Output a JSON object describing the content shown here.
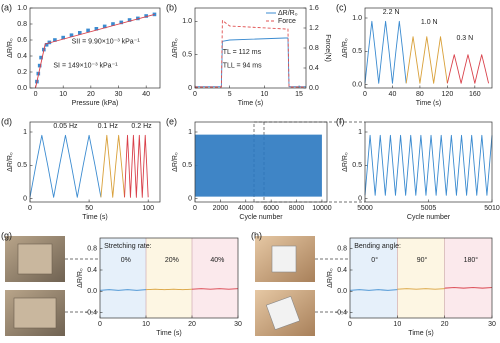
{
  "chart_data": [
    {
      "type": "line",
      "label": "(a)",
      "xlabel": "Pressure (kPa)",
      "ylabel": "ΔR/R₀",
      "xlim": [
        -2,
        45
      ],
      "xticks": [
        0,
        10,
        20,
        30,
        40
      ],
      "ylim": [
        0,
        1.0
      ],
      "yticks": [
        {
          "value": 0,
          "label": "0.0"
        },
        0.2,
        0.4,
        0.6,
        0.8,
        {
          "value": 1,
          "label": "1.0"
        }
      ],
      "annotations": [
        "SII = 9.90×10⁻³ kPa⁻¹",
        "SI = 149×10⁻³ kPa⁻¹"
      ],
      "series": [
        {
          "mode": "scatter",
          "color": "#3b8bd0",
          "x": [
            0.5,
            1,
            1.5,
            2,
            3,
            4,
            5,
            7,
            10,
            13,
            16,
            19,
            22,
            25,
            28,
            31,
            34,
            37,
            40,
            43
          ],
          "values": [
            0.08,
            0.18,
            0.28,
            0.38,
            0.48,
            0.54,
            0.57,
            0.6,
            0.63,
            0.66,
            0.69,
            0.72,
            0.74,
            0.77,
            0.8,
            0.82,
            0.85,
            0.87,
            0.9,
            0.92
          ]
        },
        {
          "mode": "line",
          "color": "#d9404a",
          "x": [
            0,
            3.5,
            43
          ],
          "values": [
            0,
            0.55,
            0.92
          ]
        }
      ]
    },
    {
      "type": "line",
      "label": "(b)",
      "xlabel": "Time (s)",
      "ylabel": "ΔR/R₀",
      "y2label": "Force(N)",
      "xlim": [
        0,
        16
      ],
      "xticks": [
        0,
        5,
        10,
        15
      ],
      "ylim": [
        0,
        1.2
      ],
      "yticks": [
        0,
        0.5,
        {
          "value": 1,
          "label": "1.0"
        }
      ],
      "y2lim": [
        0,
        1.6
      ],
      "y2ticks": [
        {
          "value": 0,
          "label": "0.0"
        },
        0.4,
        0.8,
        1.2,
        1.6
      ],
      "legend": "upper right",
      "annotations": [
        "TL = 112 ms",
        "TLL = 94 ms"
      ],
      "series": [
        {
          "name": "ΔR/R₀",
          "mode": "line",
          "color": "#3b8bd0",
          "x": [
            0,
            3.8,
            3.95,
            5,
            13,
            13.4,
            13.55,
            16
          ],
          "values": [
            0.02,
            0.02,
            0.7,
            0.72,
            0.75,
            0.75,
            0.02,
            0.02
          ]
        },
        {
          "name": "Force",
          "mode": "line",
          "dash": true,
          "axis": "y2",
          "color": "#e05050",
          "x": [
            0,
            3.8,
            3.95,
            5,
            13,
            13.4,
            13.55,
            16
          ],
          "values": [
            0.02,
            0.02,
            1.35,
            1.24,
            1.18,
            1.18,
            0.02,
            0.02
          ]
        }
      ]
    },
    {
      "type": "line",
      "label": "(c)",
      "xlabel": "Time (s)",
      "ylabel": "ΔR/R₀",
      "xlim": [
        0,
        185
      ],
      "xticks": [
        0,
        40,
        80,
        120,
        160
      ],
      "ylim": [
        -0.05,
        1.15
      ],
      "yticks": [
        {
          "value": 0,
          "label": "0.0"
        },
        0.5,
        {
          "value": 1,
          "label": "1.0"
        }
      ],
      "annotations": [
        "2.2 N",
        "1.0 N",
        "0.3 N"
      ],
      "series": [
        {
          "mode": "line",
          "color": "#3b8bd0",
          "x": [
            0,
            5,
            10,
            15,
            20,
            25,
            30,
            35,
            40,
            45,
            50,
            55,
            60
          ],
          "values": [
            0.02,
            0.5,
            0.95,
            0.5,
            0.02,
            0.5,
            0.95,
            0.5,
            0.02,
            0.5,
            0.95,
            0.5,
            0.02
          ]
        },
        {
          "mode": "line",
          "color": "#d9a13b",
          "x": [
            60,
            65,
            70,
            75,
            80,
            85,
            90,
            95,
            100,
            105,
            110,
            115,
            120
          ],
          "values": [
            0.02,
            0.37,
            0.72,
            0.37,
            0.02,
            0.37,
            0.72,
            0.37,
            0.02,
            0.37,
            0.72,
            0.37,
            0.02
          ]
        },
        {
          "mode": "line",
          "color": "#d9404a",
          "x": [
            120,
            125,
            130,
            135,
            140,
            145,
            150,
            155,
            160,
            165,
            170,
            175,
            180
          ],
          "values": [
            0.02,
            0.24,
            0.45,
            0.24,
            0.02,
            0.24,
            0.45,
            0.24,
            0.02,
            0.24,
            0.45,
            0.24,
            0.02
          ]
        }
      ]
    },
    {
      "type": "line",
      "label": "(d)",
      "xlabel": "Time (s)",
      "ylabel": "ΔR/R₀",
      "xlim": [
        0,
        110
      ],
      "xticks": [
        0,
        50,
        100
      ],
      "ylim": [
        -0.05,
        1.15
      ],
      "yticks": [
        0,
        0.5,
        1
      ],
      "annotations": [
        "0.05 Hz",
        "0.1 Hz",
        "0.2 Hz"
      ],
      "series": [
        {
          "mode": "line",
          "color": "#3b8bd0",
          "x": [
            0,
            5,
            10,
            15,
            20,
            25,
            30,
            35,
            40,
            45,
            50,
            55,
            60
          ],
          "values": [
            0.02,
            0.5,
            0.95,
            0.5,
            0.02,
            0.5,
            0.95,
            0.5,
            0.02,
            0.5,
            0.95,
            0.5,
            0.02
          ]
        },
        {
          "mode": "line",
          "color": "#d9a13b",
          "x": [
            60,
            62.5,
            65,
            67.5,
            70,
            72.5,
            75,
            77.5,
            80
          ],
          "values": [
            0.02,
            0.5,
            0.95,
            0.5,
            0.02,
            0.5,
            0.95,
            0.5,
            0.02
          ]
        },
        {
          "mode": "line",
          "color": "#d9404a",
          "x": [
            80,
            81.25,
            82.5,
            83.75,
            85,
            86.25,
            87.5,
            88.75,
            90,
            91.25,
            92.5,
            93.75,
            95,
            96.25,
            97.5,
            98.75,
            100
          ],
          "values": [
            0.02,
            0.5,
            0.95,
            0.5,
            0.02,
            0.5,
            0.95,
            0.5,
            0.02,
            0.5,
            0.95,
            0.5,
            0.02,
            0.5,
            0.95,
            0.5,
            0.02
          ]
        }
      ]
    },
    {
      "type": "band",
      "label": "(e)",
      "xlabel": "Cycle number",
      "ylabel": "ΔR/R₀",
      "xlim": [
        0,
        10400
      ],
      "xticks": [
        0,
        2000,
        4000,
        6000,
        8000,
        10000
      ],
      "ylim": [
        -0.05,
        1.15
      ],
      "yticks": [
        0,
        0.5,
        1
      ],
      "series": [
        {
          "color": "#2a78c0",
          "x": [
            0,
            10000
          ],
          "upper": [
            0.96,
            0.96
          ],
          "lower": [
            0.03,
            0.03
          ]
        }
      ]
    },
    {
      "type": "line",
      "label": "(f)",
      "xlabel": "Cycle number",
      "ylabel": "ΔR/R₀",
      "xlim": [
        5000,
        5010
      ],
      "xticks": [
        5000,
        5005,
        5010
      ],
      "ylim": [
        -0.05,
        1.15
      ],
      "yticks": [
        0,
        0.5,
        1
      ],
      "series": [
        {
          "mode": "line",
          "color": "#3b8bd0",
          "x": [
            5000,
            5000.2,
            5000.4,
            5000.6,
            5000.8,
            5001,
            5001.2,
            5001.4,
            5001.6,
            5001.8,
            5002,
            5002.2,
            5002.4,
            5002.6,
            5002.8,
            5003,
            5003.2,
            5003.4,
            5003.6,
            5003.8,
            5004,
            5004.2,
            5004.4,
            5004.6,
            5004.8,
            5005,
            5005.2,
            5005.4,
            5005.6,
            5005.8,
            5006,
            5006.2,
            5006.4,
            5006.6,
            5006.8,
            5007,
            5007.2,
            5007.4,
            5007.6,
            5007.8,
            5008,
            5008.2,
            5008.4,
            5008.6,
            5008.8,
            5009,
            5009.2,
            5009.4,
            5009.6,
            5009.8,
            5010
          ],
          "values": [
            0.05,
            0.5,
            0.95,
            0.5,
            0.05,
            0.5,
            0.95,
            0.5,
            0.05,
            0.5,
            0.95,
            0.5,
            0.05,
            0.5,
            0.95,
            0.5,
            0.05,
            0.5,
            0.95,
            0.5,
            0.05,
            0.5,
            0.95,
            0.5,
            0.05,
            0.5,
            0.95,
            0.5,
            0.05,
            0.5,
            0.95,
            0.5,
            0.05,
            0.5,
            0.95,
            0.5,
            0.05,
            0.5,
            0.95,
            0.5,
            0.05,
            0.5,
            0.95,
            0.5,
            0.05,
            0.5,
            0.95,
            0.5,
            0.05,
            0.5,
            0.95
          ]
        }
      ]
    },
    {
      "type": "line",
      "label": "(g)",
      "xlabel": "Time (s)",
      "ylabel": "ΔR/R₀",
      "xlim": [
        0,
        30
      ],
      "xticks": [
        0,
        10,
        20,
        30
      ],
      "ylim": [
        -0.5,
        1.0
      ],
      "yticks": [
        -0.4,
        {
          "value": 0,
          "label": "0.0"
        },
        0.4,
        0.8
      ],
      "annotations": [
        "Stretching rate:",
        "0%",
        "20%",
        "40%"
      ],
      "spans": [
        {
          "x": [
            0,
            10
          ],
          "color": "#e6f0fa"
        },
        {
          "x": [
            10,
            20
          ],
          "color": "#fdf6e3"
        },
        {
          "x": [
            20,
            30
          ],
          "color": "#fbe9ec"
        }
      ],
      "series": [
        {
          "mode": "line",
          "color": "#3b8bd0",
          "x": [
            0,
            2,
            4,
            6,
            8,
            10
          ],
          "values": [
            0.02,
            0.03,
            0.02,
            0.03,
            0.02,
            0.03
          ]
        },
        {
          "mode": "line",
          "color": "#d9a13b",
          "x": [
            10,
            12,
            14,
            16,
            18,
            20
          ],
          "values": [
            0.03,
            0.04,
            0.03,
            0.04,
            0.03,
            0.04
          ]
        },
        {
          "mode": "line",
          "color": "#d9404a",
          "x": [
            20,
            22,
            24,
            26,
            28,
            30
          ],
          "values": [
            0.04,
            0.05,
            0.04,
            0.05,
            0.04,
            0.05
          ]
        }
      ]
    },
    {
      "type": "line",
      "label": "(h)",
      "xlabel": "Time (s)",
      "ylabel": "ΔR/R₀",
      "xlim": [
        0,
        30
      ],
      "xticks": [
        0,
        10,
        20,
        30
      ],
      "ylim": [
        -0.5,
        1.0
      ],
      "yticks": [
        -0.4,
        {
          "value": 0,
          "label": "0.0"
        },
        0.4,
        0.8
      ],
      "annotations": [
        "Bending angle:",
        "0°",
        "90°",
        "180°"
      ],
      "spans": [
        {
          "x": [
            0,
            10
          ],
          "color": "#e6f0fa"
        },
        {
          "x": [
            10,
            20
          ],
          "color": "#fdf6e3"
        },
        {
          "x": [
            20,
            30
          ],
          "color": "#fbe9ec"
        }
      ],
      "series": [
        {
          "mode": "line",
          "color": "#3b8bd0",
          "x": [
            0,
            2,
            4,
            6,
            8,
            10
          ],
          "values": [
            0.02,
            0.03,
            0.02,
            0.03,
            0.02,
            0.03
          ]
        },
        {
          "mode": "line",
          "color": "#d9a13b",
          "x": [
            10,
            12,
            14,
            16,
            18,
            20
          ],
          "values": [
            0.04,
            0.05,
            0.04,
            0.05,
            0.04,
            0.05
          ]
        },
        {
          "mode": "line",
          "color": "#d9404a",
          "x": [
            20,
            22,
            24,
            26,
            28,
            30
          ],
          "values": [
            0.06,
            0.07,
            0.06,
            0.07,
            0.06,
            0.07
          ]
        }
      ]
    }
  ]
}
